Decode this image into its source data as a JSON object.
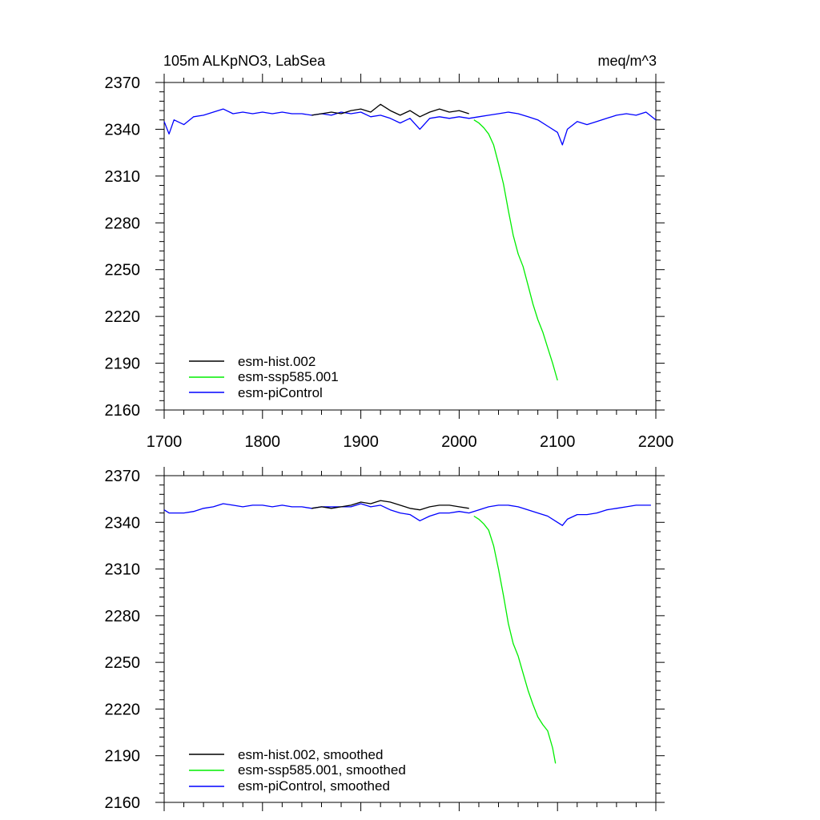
{
  "chart_data": [
    {
      "type": "line",
      "title": "105m ALKpNO3, LabSea",
      "units": "meq/m^3",
      "xlabel": "",
      "ylabel": "",
      "xlim": [
        1700,
        2200
      ],
      "ylim": [
        2160,
        2370
      ],
      "x_ticks": [
        1700,
        1800,
        1900,
        2000,
        2100,
        2200
      ],
      "x_tick_labels": [
        "1700",
        "1800",
        "1900",
        "2000",
        "2100",
        "2200"
      ],
      "y_ticks": [
        2160,
        2190,
        2220,
        2250,
        2280,
        2310,
        2340,
        2370
      ],
      "y_tick_labels": [
        "2160",
        "2190",
        "2220",
        "2250",
        "2280",
        "2310",
        "2340",
        "2370"
      ],
      "legend": "bottom-left",
      "series": [
        {
          "name": "esm-hist.002",
          "color": "#000000",
          "x": [
            1850,
            1860,
            1870,
            1880,
            1890,
            1900,
            1910,
            1920,
            1930,
            1940,
            1950,
            1960,
            1970,
            1980,
            1990,
            2000,
            2010
          ],
          "values": [
            2349,
            2350,
            2351,
            2350,
            2352,
            2353,
            2351,
            2356,
            2352,
            2349,
            2352,
            2348,
            2351,
            2353,
            2351,
            2352,
            2350
          ]
        },
        {
          "name": "esm-ssp585.001",
          "color": "#00ee00",
          "x": [
            2015,
            2020,
            2025,
            2030,
            2035,
            2040,
            2045,
            2050,
            2055,
            2060,
            2065,
            2070,
            2075,
            2080,
            2085,
            2090,
            2095,
            2100
          ],
          "values": [
            2346,
            2344,
            2341,
            2337,
            2330,
            2318,
            2305,
            2288,
            2272,
            2260,
            2252,
            2240,
            2228,
            2218,
            2210,
            2200,
            2190,
            2179
          ]
        },
        {
          "name": "esm-piControl",
          "color": "#0000ff",
          "x": [
            1700,
            1705,
            1710,
            1720,
            1730,
            1740,
            1750,
            1760,
            1770,
            1780,
            1790,
            1800,
            1810,
            1820,
            1830,
            1840,
            1850,
            1860,
            1870,
            1880,
            1890,
            1900,
            1910,
            1920,
            1930,
            1940,
            1950,
            1960,
            1970,
            1980,
            1990,
            2000,
            2010,
            2020,
            2030,
            2040,
            2050,
            2060,
            2070,
            2080,
            2090,
            2100,
            2105,
            2110,
            2120,
            2130,
            2140,
            2150,
            2160,
            2170,
            2180,
            2190,
            2200
          ],
          "values": [
            2345,
            2337,
            2346,
            2343,
            2348,
            2349,
            2351,
            2353,
            2350,
            2351,
            2350,
            2351,
            2350,
            2351,
            2350,
            2350,
            2349,
            2350,
            2349,
            2351,
            2350,
            2351,
            2348,
            2349,
            2347,
            2344,
            2347,
            2340,
            2347,
            2348,
            2347,
            2348,
            2347,
            2348,
            2349,
            2350,
            2351,
            2350,
            2348,
            2346,
            2342,
            2338,
            2330,
            2340,
            2345,
            2343,
            2345,
            2347,
            2349,
            2350,
            2349,
            2351,
            2346
          ]
        }
      ]
    },
    {
      "type": "line",
      "title": "",
      "xlabel": "",
      "ylabel": "",
      "xlim": [
        1700,
        2200
      ],
      "ylim": [
        2160,
        2370
      ],
      "y_ticks": [
        2160,
        2190,
        2220,
        2250,
        2280,
        2310,
        2340,
        2370
      ],
      "y_tick_labels": [
        "2160",
        "2190",
        "2220",
        "2250",
        "2280",
        "2310",
        "2340",
        "2370"
      ],
      "legend": "bottom-left",
      "series": [
        {
          "name": "esm-hist.002, smoothed",
          "color": "#000000",
          "x": [
            1850,
            1860,
            1870,
            1880,
            1890,
            1900,
            1910,
            1920,
            1930,
            1940,
            1950,
            1960,
            1970,
            1980,
            1990,
            2000,
            2010
          ],
          "values": [
            2349,
            2350,
            2349,
            2350,
            2351,
            2353,
            2352,
            2354,
            2353,
            2351,
            2349,
            2348,
            2350,
            2351,
            2351,
            2350,
            2349
          ]
        },
        {
          "name": "esm-ssp585.001, smoothed",
          "color": "#00ee00",
          "x": [
            2015,
            2020,
            2025,
            2030,
            2035,
            2040,
            2045,
            2050,
            2055,
            2060,
            2065,
            2070,
            2075,
            2080,
            2085,
            2090,
            2095,
            2098
          ],
          "values": [
            2344,
            2342,
            2339,
            2335,
            2325,
            2310,
            2293,
            2275,
            2262,
            2254,
            2243,
            2232,
            2223,
            2215,
            2210,
            2206,
            2195,
            2185
          ]
        },
        {
          "name": "esm-piControl, smoothed",
          "color": "#0000ff",
          "x": [
            1700,
            1705,
            1710,
            1720,
            1730,
            1740,
            1750,
            1760,
            1770,
            1780,
            1790,
            1800,
            1810,
            1820,
            1830,
            1840,
            1850,
            1860,
            1870,
            1880,
            1890,
            1900,
            1910,
            1920,
            1930,
            1940,
            1950,
            1960,
            1970,
            1980,
            1990,
            2000,
            2010,
            2020,
            2030,
            2040,
            2050,
            2060,
            2070,
            2080,
            2090,
            2100,
            2105,
            2110,
            2120,
            2130,
            2140,
            2150,
            2160,
            2170,
            2180,
            2190,
            2195
          ],
          "values": [
            2348,
            2346,
            2346,
            2346,
            2347,
            2349,
            2350,
            2352,
            2351,
            2350,
            2351,
            2351,
            2350,
            2351,
            2350,
            2350,
            2349,
            2350,
            2350,
            2350,
            2350,
            2352,
            2350,
            2351,
            2348,
            2346,
            2345,
            2341,
            2344,
            2346,
            2346,
            2347,
            2346,
            2348,
            2350,
            2351,
            2351,
            2350,
            2348,
            2346,
            2344,
            2340,
            2338,
            2342,
            2345,
            2345,
            2346,
            2348,
            2349,
            2350,
            2351,
            2351,
            2351
          ]
        }
      ]
    }
  ]
}
